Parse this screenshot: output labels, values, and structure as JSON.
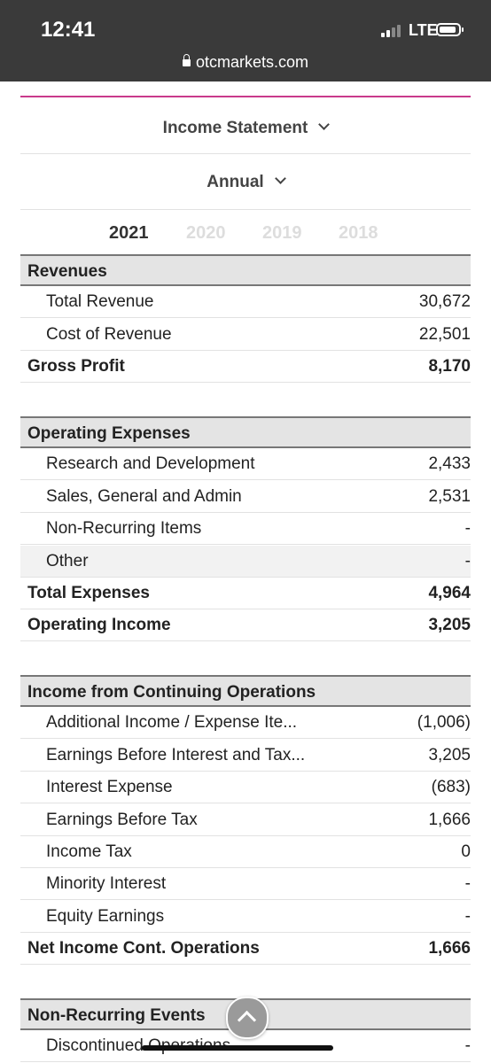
{
  "status_bar": {
    "time": "12:41",
    "network": "LTE",
    "url": "otcmarkets.com"
  },
  "statement_type": "Income Statement",
  "period": "Annual",
  "years": [
    "2021",
    "2020",
    "2019",
    "2018"
  ],
  "active_year": "2021",
  "sections": [
    {
      "title": "Revenues",
      "rows": [
        {
          "label": "Total Revenue",
          "value": "30,672"
        },
        {
          "label": "Cost of Revenue",
          "value": "22,501"
        }
      ],
      "totals": [
        {
          "label": "Gross Profit",
          "value": "8,170"
        }
      ]
    },
    {
      "title": "Operating Expenses",
      "rows": [
        {
          "label": "Research and Development",
          "value": "2,433"
        },
        {
          "label": "Sales, General and Admin",
          "value": "2,531"
        },
        {
          "label": "Non-Recurring Items",
          "value": "-"
        },
        {
          "label": "Other",
          "value": "-"
        }
      ],
      "totals": [
        {
          "label": "Total Expenses",
          "value": "4,964"
        },
        {
          "label": "Operating Income",
          "value": "3,205"
        }
      ]
    },
    {
      "title": "Income from Continuing Operations",
      "rows": [
        {
          "label": "Additional Income / Expense Ite...",
          "value": "(1,006)"
        },
        {
          "label": "Earnings Before Interest and Tax...",
          "value": "3,205"
        },
        {
          "label": "Interest Expense",
          "value": "(683)"
        },
        {
          "label": "Earnings Before Tax",
          "value": "1,666"
        },
        {
          "label": "Income Tax",
          "value": "0"
        },
        {
          "label": "Minority Interest",
          "value": "-"
        },
        {
          "label": "Equity Earnings",
          "value": "-"
        }
      ],
      "totals": [
        {
          "label": "Net Income Cont. Operations",
          "value": "1,666"
        }
      ]
    },
    {
      "title": "Non-Recurring Events",
      "rows": [
        {
          "label": "Discontinued Operations",
          "value": "-"
        }
      ],
      "totals": []
    }
  ]
}
